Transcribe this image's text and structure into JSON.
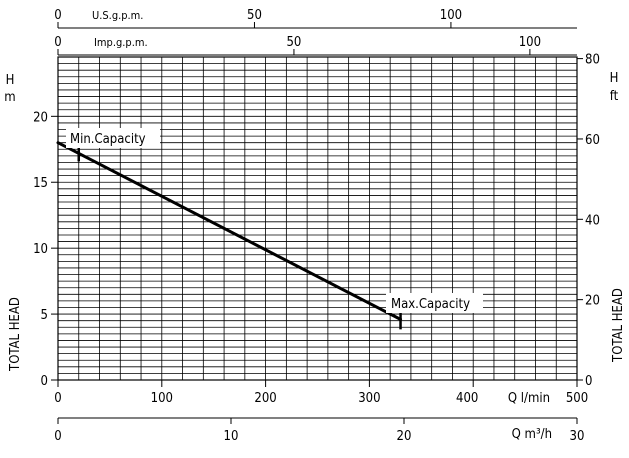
{
  "chart_data": {
    "type": "line",
    "series": [
      {
        "x": [
          0,
          330
        ],
        "y": [
          18,
          4.6
        ]
      }
    ],
    "annotations": [
      {
        "text": "Min.Capacity",
        "x": 20,
        "y": 18
      },
      {
        "text": "Max.Capacity",
        "x": 330,
        "y": 4.6
      }
    ],
    "xlabel": "Q  l/min",
    "xlim": [
      0,
      500
    ],
    "xticks": [
      "0",
      "100",
      "200",
      "300",
      "400",
      "500"
    ],
    "x2label": "Q  m³/h",
    "x2lim": [
      0,
      30
    ],
    "x2ticks": [
      "0",
      "10",
      "20",
      "30"
    ],
    "top1_label": "U.S.g.p.m.",
    "top1_ticks": [
      "0",
      "50",
      "100"
    ],
    "top2_label": "Imp.g.p.m.",
    "top2_ticks": [
      "0",
      "50",
      "100"
    ],
    "ylabel": "TOTAL HEAD",
    "y_unit": "H m",
    "ylim": [
      0,
      24.5
    ],
    "yticks": [
      "0",
      "5",
      "10",
      "15",
      "20"
    ],
    "y2label": "TOTAL HEAD",
    "y2_unit": "H ft",
    "y2lim": [
      0,
      80.4
    ],
    "y2ticks": [
      "0",
      "20",
      "40",
      "60",
      "80"
    ],
    "grid": true
  }
}
